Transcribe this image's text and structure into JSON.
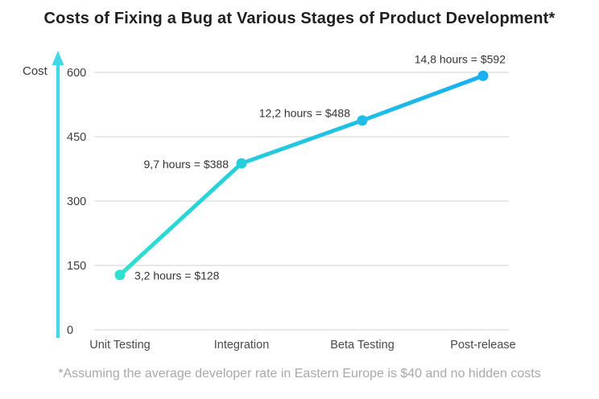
{
  "title": "Costs of Fixing a Bug at Various Stages of Product Development*",
  "footnote": "*Assuming the average developer rate in Eastern Europe is $40 and no hidden costs",
  "colors": {
    "line_gradient_start": "#2ee0ce",
    "line_gradient_end": "#19aff0",
    "axis_arrow": "#44d7e6",
    "gridline": "#d9d9d9",
    "title_text": "#1f1f1f",
    "point_label_text": "#333333",
    "axis_text": "#4a4a4a",
    "footnote_text": "#a8a8a8"
  },
  "chart_data": {
    "type": "line",
    "title": "Costs of Fixing a Bug at Various Stages of Product Development*",
    "xlabel": "",
    "ylabel": "Cost",
    "categories": [
      "Unit Testing",
      "Integration",
      "Beta Testing",
      "Post-release"
    ],
    "values": [
      128,
      388,
      488,
      592
    ],
    "hours": [
      3.2,
      9.7,
      12.2,
      14.8
    ],
    "point_labels": [
      "3,2 hours = $128",
      "9,7 hours = $388",
      "12,2 hours = $488",
      "14,8 hours = $592"
    ],
    "yticks": [
      0,
      150,
      300,
      450,
      600
    ],
    "ylim": [
      0,
      600
    ],
    "grid": true,
    "legend": false,
    "footnote": "*Assuming the average developer rate in Eastern Europe is $40 and no hidden costs"
  }
}
